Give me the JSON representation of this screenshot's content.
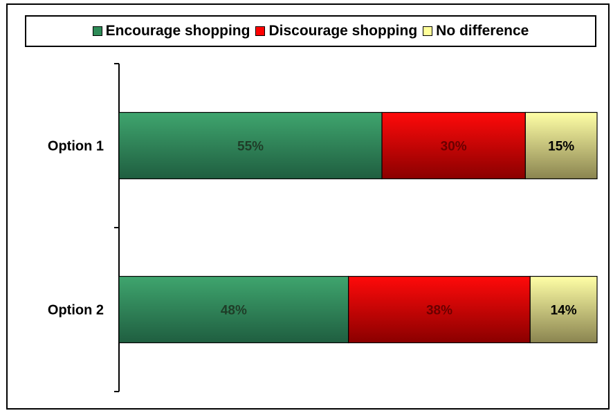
{
  "chart_data": {
    "type": "bar",
    "orientation": "horizontal",
    "stacked": true,
    "percent_stacked": true,
    "categories": [
      "Option 1",
      "Option 2"
    ],
    "series": [
      {
        "name": "Encourage shopping",
        "values": [
          55,
          48
        ],
        "labels": [
          "55%",
          "48%"
        ],
        "color": "#2e8b57"
      },
      {
        "name": "Discourage shopping",
        "values": [
          30,
          38
        ],
        "labels": [
          "30%",
          "38%"
        ],
        "color": "#ff0000"
      },
      {
        "name": "No difference",
        "values": [
          15,
          14
        ],
        "labels": [
          "15%",
          "14%"
        ],
        "color": "#ffff99"
      }
    ],
    "xlim": [
      0,
      100
    ],
    "grid": false,
    "legend_position": "top",
    "title": "",
    "xlabel": "",
    "ylabel": ""
  }
}
